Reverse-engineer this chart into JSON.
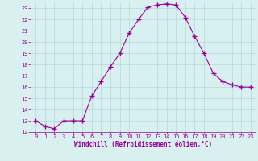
{
  "x": [
    0,
    1,
    2,
    3,
    4,
    5,
    6,
    7,
    8,
    9,
    10,
    11,
    12,
    13,
    14,
    15,
    16,
    17,
    18,
    19,
    20,
    21,
    22,
    23
  ],
  "y": [
    13.0,
    12.5,
    12.3,
    13.0,
    13.0,
    13.0,
    15.2,
    16.5,
    17.8,
    19.0,
    20.8,
    22.0,
    23.1,
    23.3,
    23.4,
    23.3,
    22.2,
    20.5,
    19.0,
    17.2,
    16.5,
    16.2,
    16.0,
    16.0
  ],
  "line_color": "#990099",
  "marker": "+",
  "marker_size": 4,
  "marker_lw": 1.0,
  "bg_color": "#d8f0f0",
  "grid_color": "#b8d8d8",
  "xlabel": "Windchill (Refroidissement éolien,°C)",
  "xlabel_color": "#990099",
  "tick_color": "#990099",
  "ylim": [
    12,
    23.6
  ],
  "xlim": [
    -0.5,
    23.5
  ],
  "yticks": [
    12,
    13,
    14,
    15,
    16,
    17,
    18,
    19,
    20,
    21,
    22,
    23
  ],
  "xticks": [
    0,
    1,
    2,
    3,
    4,
    5,
    6,
    7,
    8,
    9,
    10,
    11,
    12,
    13,
    14,
    15,
    16,
    17,
    18,
    19,
    20,
    21,
    22,
    23
  ],
  "tick_fontsize": 5.0,
  "xlabel_fontsize": 5.5,
  "linewidth": 0.8
}
